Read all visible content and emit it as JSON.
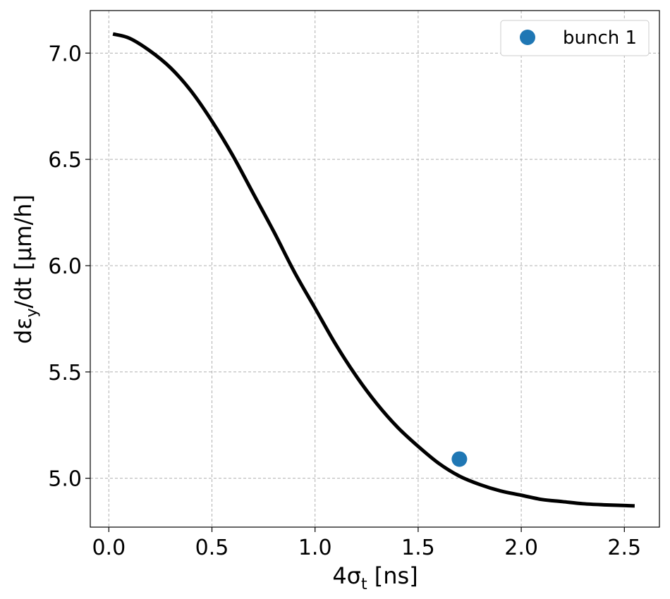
{
  "chart_data": {
    "type": "line",
    "xlabel": {
      "main": "4σ",
      "sub": "t",
      "rest": " [ns]"
    },
    "ylabel": {
      "pre": "dε",
      "sub": "y",
      "rest": "/dt [µm/h]"
    },
    "xlim": [
      -0.09,
      2.67
    ],
    "ylim": [
      4.77,
      7.2
    ],
    "xticks": [
      0.0,
      0.5,
      1.0,
      1.5,
      2.0,
      2.5
    ],
    "xtick_labels": [
      "0.0",
      "0.5",
      "1.0",
      "1.5",
      "2.0",
      "2.5"
    ],
    "yticks": [
      5.0,
      5.5,
      6.0,
      6.5,
      7.0
    ],
    "ytick_labels": [
      "5.0",
      "5.5",
      "6.0",
      "6.5",
      "7.0"
    ],
    "grid": true,
    "legend_position": "top-right",
    "series": [
      {
        "color": "#000000",
        "x": [
          0.02,
          0.1,
          0.2,
          0.3,
          0.4,
          0.5,
          0.6,
          0.7,
          0.8,
          0.9,
          1.0,
          1.1,
          1.2,
          1.3,
          1.4,
          1.5,
          1.6,
          1.7,
          1.8,
          1.9,
          2.0,
          2.1,
          2.2,
          2.3,
          2.4,
          2.55
        ],
        "y": [
          7.09,
          7.07,
          7.01,
          6.93,
          6.82,
          6.68,
          6.52,
          6.34,
          6.16,
          5.97,
          5.8,
          5.63,
          5.48,
          5.35,
          5.24,
          5.15,
          5.07,
          5.01,
          4.97,
          4.94,
          4.92,
          4.9,
          4.89,
          4.88,
          4.875,
          4.87
        ]
      },
      {
        "name": "bunch 1",
        "color": "#1f77b4",
        "marker": "circle",
        "x": [
          1.7
        ],
        "y": [
          5.09
        ]
      }
    ]
  }
}
